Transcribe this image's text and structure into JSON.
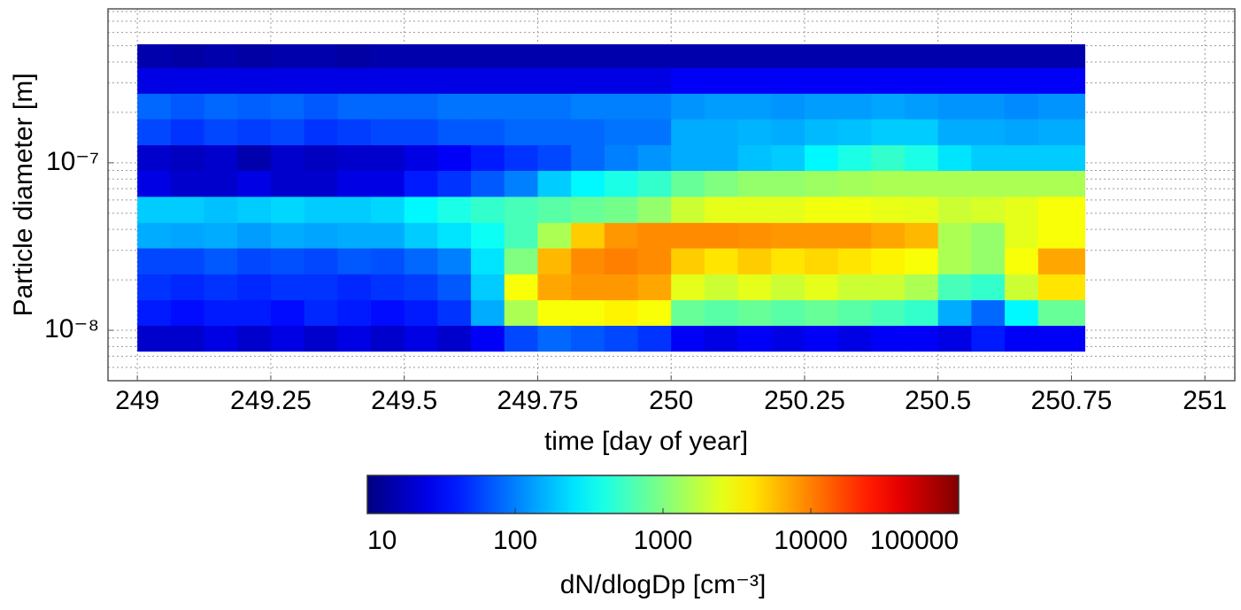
{
  "chart_data": {
    "type": "heatmap",
    "xlabel": "time [day of year]",
    "ylabel": "Particle diameter [m]",
    "colorbar_label": "dN/dlogDp [cm⁻³]",
    "colormap": "jet",
    "xlim": [
      248.945,
      251.056
    ],
    "xticks": [
      249,
      249.25,
      249.5,
      249.75,
      250,
      250.25,
      250.5,
      250.75,
      251
    ],
    "ylim": [
      5e-09,
      8.3e-07
    ],
    "yscale": "log",
    "yticks": [
      {
        "value": 1e-08,
        "label": "10⁻⁸"
      },
      {
        "value": 1e-07,
        "label": "10⁻⁷"
      }
    ],
    "yminorticks": [
      6e-09,
      7e-09,
      8e-09,
      9e-09,
      2e-08,
      3e-08,
      4e-08,
      5e-08,
      6e-08,
      7e-08,
      8e-08,
      9e-08,
      2e-07,
      3e-07,
      4e-07,
      5e-07,
      6e-07,
      7e-07,
      8e-07
    ],
    "grid": true,
    "clim": [
      10,
      100000
    ],
    "cscale": "log",
    "cticks": [
      10,
      100,
      1000,
      10000,
      100000
    ],
    "x_bins": [
      249,
      249.0625,
      249.125,
      249.1875,
      249.25,
      249.3125,
      249.375,
      249.4375,
      249.5,
      249.5625,
      249.625,
      249.6875,
      249.75,
      249.8125,
      249.875,
      249.9375,
      250,
      250.0625,
      250.125,
      250.1875,
      250.25,
      250.3125,
      250.375,
      250.4375,
      250.5,
      250.5625,
      250.625,
      250.6875,
      250.775
    ],
    "y_bins": [
      7.5e-09,
      1.07e-08,
      1.52e-08,
      2.17e-08,
      3.1e-08,
      4.4e-08,
      6.3e-08,
      9e-08,
      1.28e-07,
      1.83e-07,
      2.6e-07,
      3.7e-07,
      5.1e-07
    ],
    "z": [
      [
        20,
        20,
        25,
        20,
        25,
        20,
        25,
        20,
        25,
        20,
        30,
        60,
        80,
        70,
        60,
        50,
        30,
        25,
        30,
        25,
        30,
        25,
        30,
        30,
        25,
        40,
        30,
        30
      ],
      [
        40,
        35,
        40,
        40,
        35,
        45,
        40,
        35,
        40,
        50,
        150,
        1500,
        3000,
        3000,
        3500,
        3000,
        800,
        700,
        800,
        700,
        800,
        700,
        600,
        500,
        150,
        80,
        300,
        800
      ],
      [
        50,
        45,
        50,
        45,
        50,
        50,
        45,
        50,
        55,
        70,
        200,
        3000,
        7000,
        8000,
        8000,
        7000,
        2500,
        2000,
        2500,
        2000,
        2500,
        2000,
        2000,
        1500,
        600,
        500,
        2000,
        4000
      ],
      [
        60,
        60,
        70,
        60,
        65,
        60,
        70,
        65,
        80,
        100,
        250,
        1000,
        6000,
        9000,
        10000,
        9000,
        5000,
        4000,
        5000,
        4000,
        4500,
        4000,
        3500,
        3000,
        1500,
        1200,
        3000,
        7000
      ],
      [
        150,
        140,
        150,
        130,
        150,
        140,
        150,
        150,
        200,
        250,
        350,
        600,
        1500,
        5000,
        8000,
        9000,
        9000,
        9000,
        8500,
        8000,
        8000,
        8000,
        7000,
        6000,
        1500,
        1200,
        2500,
        3000
      ],
      [
        200,
        200,
        180,
        200,
        220,
        200,
        200,
        220,
        300,
        400,
        500,
        600,
        700,
        800,
        900,
        1200,
        2000,
        2500,
        2500,
        2500,
        2800,
        2800,
        2600,
        2500,
        2000,
        2200,
        2500,
        3000
      ],
      [
        25,
        20,
        20,
        25,
        20,
        20,
        25,
        25,
        40,
        50,
        70,
        100,
        200,
        300,
        400,
        500,
        800,
        1000,
        1200,
        1200,
        1300,
        1400,
        1500,
        1500,
        1500,
        1500,
        1500,
        1500
      ],
      [
        20,
        18,
        20,
        15,
        20,
        18,
        20,
        20,
        25,
        30,
        40,
        50,
        60,
        80,
        100,
        120,
        150,
        150,
        180,
        200,
        300,
        400,
        500,
        400,
        250,
        200,
        200,
        200
      ],
      [
        60,
        50,
        60,
        55,
        60,
        50,
        55,
        60,
        60,
        70,
        70,
        80,
        80,
        80,
        90,
        90,
        150,
        150,
        160,
        150,
        170,
        180,
        200,
        200,
        150,
        150,
        140,
        150
      ],
      [
        80,
        70,
        80,
        75,
        80,
        70,
        80,
        80,
        80,
        90,
        90,
        90,
        90,
        100,
        100,
        100,
        120,
        130,
        130,
        120,
        130,
        130,
        140,
        130,
        120,
        120,
        110,
        120
      ],
      [
        25,
        25,
        25,
        25,
        25,
        25,
        25,
        25,
        25,
        25,
        25,
        25,
        25,
        25,
        25,
        25,
        30,
        30,
        30,
        30,
        30,
        30,
        30,
        30,
        30,
        30,
        30,
        30
      ],
      [
        15,
        14,
        15,
        14,
        15,
        15,
        14,
        15,
        15,
        15,
        15,
        15,
        15,
        15,
        15,
        15,
        15,
        15,
        15,
        15,
        15,
        15,
        15,
        15,
        15,
        15,
        15,
        15
      ]
    ]
  }
}
